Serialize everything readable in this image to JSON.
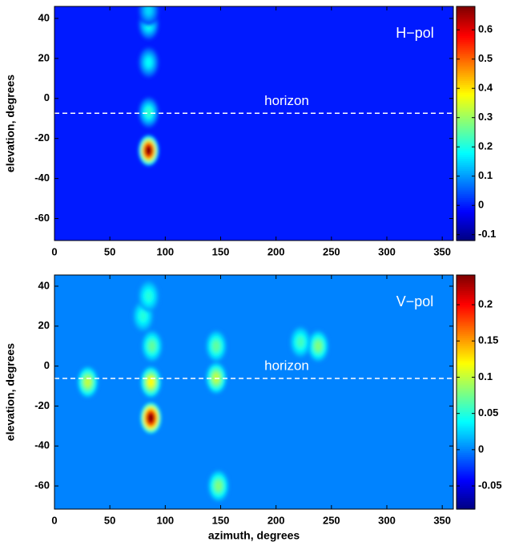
{
  "chart_data": [
    {
      "type": "heatmap",
      "label": "H−pol",
      "ylabel": "elevation, degrees",
      "xlim": [
        0,
        360
      ],
      "xticks": [
        0,
        50,
        100,
        150,
        200,
        250,
        300,
        350
      ],
      "ylim": [
        -71,
        46
      ],
      "yticks": [
        -60,
        -40,
        -20,
        0,
        20,
        40
      ],
      "clim": [
        -0.12,
        0.68
      ],
      "cticks": [
        -0.1,
        0,
        0.1,
        0.2,
        0.3,
        0.4,
        0.5,
        0.6
      ],
      "background": 0,
      "horizon": {
        "label": "horizon",
        "elevation": -7.4
      },
      "spots": {
        "x": [
          85,
          85,
          85,
          85,
          85
        ],
        "y": [
          -26,
          -7,
          18,
          37,
          44
        ],
        "values": [
          0.68,
          0.22,
          0.18,
          0.2,
          0.15
        ]
      }
    },
    {
      "type": "heatmap",
      "label": "V−pol",
      "ylabel": "elevation, degrees",
      "xlabel": "azimuth, degrees",
      "xlim": [
        0,
        360
      ],
      "xticks": [
        0,
        50,
        100,
        150,
        200,
        250,
        300,
        350
      ],
      "ylim": [
        -71.6,
        45.6
      ],
      "yticks": [
        -60,
        -40,
        -20,
        0,
        20,
        40
      ],
      "clim": [
        -0.082,
        0.241
      ],
      "cticks": [
        -0.05,
        0,
        0.05,
        0.1,
        0.15,
        0.2
      ],
      "background": 0,
      "horizon": {
        "label": "horizon",
        "elevation": -6.2
      },
      "spots": {
        "x": [
          87,
          87,
          30,
          146,
          148,
          88,
          146,
          238,
          222,
          80,
          85
        ],
        "y": [
          -26,
          -8,
          -8,
          -6,
          -60,
          10,
          10,
          10,
          12,
          25,
          35
        ],
        "values": [
          0.24,
          0.12,
          0.1,
          0.1,
          0.08,
          0.07,
          0.07,
          0.08,
          0.06,
          0.05,
          0.05
        ]
      }
    }
  ]
}
